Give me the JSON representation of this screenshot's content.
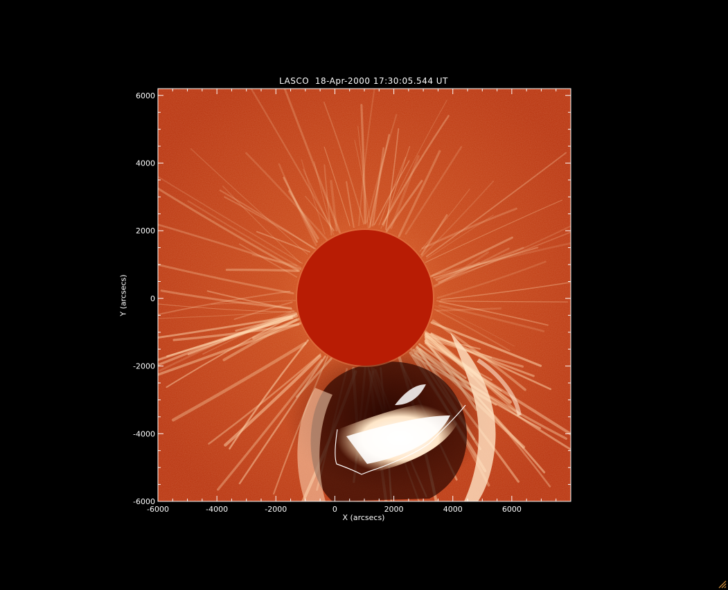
{
  "title": "LASCO  18-Apr-2000 17:30:05.544 UT",
  "xlabel": "X (arcsecs)",
  "ylabel": "Y (arcsecs)",
  "axes": {
    "xlim": [
      -6000,
      8000
    ],
    "ylim": [
      -6000,
      6200
    ],
    "x_ticks": [
      -6000,
      -4000,
      -2000,
      0,
      2000,
      4000,
      6000
    ],
    "y_ticks": [
      -6000,
      -4000,
      -2000,
      0,
      2000,
      4000,
      6000
    ]
  },
  "colors": {
    "background": "#000000",
    "corona": "#c23a10",
    "occulter": "#b81c04",
    "cme": "#ffffff"
  },
  "icons": {
    "resize_grip": "resize-grip-icon"
  }
}
